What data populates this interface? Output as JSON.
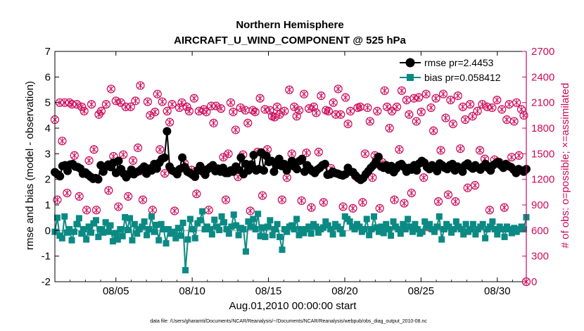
{
  "chart_data": {
    "type": "line",
    "title": "Northern Hemisphere",
    "subtitle": "AIRCRAFT_U_WIND_COMPONENT @ 525 hPa",
    "xlabel": "Aug.01,2010 00:00:00 start",
    "ylabel": "rmse and bias (model - observation)",
    "ylabel_right": "# of obs: o=possible; ×=assimilated",
    "footer": "data file: /Users/gharamti/Documents/NCAR/Reanalysis/~/Documents/NCAR/Reanalysis/webpub/obs_diag_output_2010-08.nc",
    "xlim": [
      1.0,
      31.9
    ],
    "ylim": [
      -2,
      7
    ],
    "ylim_right": [
      0,
      2700
    ],
    "x_ticks": [
      5,
      10,
      15,
      20,
      25,
      30
    ],
    "x_tick_labels": [
      "08/05",
      "08/10",
      "08/15",
      "08/20",
      "08/25",
      "08/30"
    ],
    "y_ticks": [
      "-2",
      "-1",
      "0",
      "1",
      "2",
      "3",
      "4",
      "5",
      "6",
      "7"
    ],
    "y_ticks_right": [
      "0",
      "300",
      "600",
      "900",
      "1200",
      "1500",
      "1800",
      "2100",
      "2400",
      "2700"
    ],
    "colors": {
      "rmse": "#000000",
      "bias": "#0b8a84",
      "obs": "#cc0a5a",
      "zero_line": "#bdbdbd"
    },
    "series": [
      {
        "name": "rmse",
        "legend": "rmse pr=2.4453",
        "marker": "circle",
        "values": [
          2.28,
          2.2,
          2.12,
          2.52,
          2.55,
          2.33,
          2.58,
          2.6,
          2.5,
          2.48,
          2.42,
          2.22,
          2.27,
          2.18,
          2.1,
          2.02,
          2.05,
          2.0,
          2.55,
          2.3,
          2.5,
          2.58,
          2.48,
          2.65,
          2.25,
          2.72,
          2.4,
          2.22,
          2.08,
          2.2,
          2.38,
          2.2,
          2.28,
          2.32,
          2.4,
          2.5,
          2.22,
          2.42,
          2.35,
          2.6,
          2.42,
          2.65,
          2.8,
          2.85,
          3.88,
          2.5,
          2.35,
          2.3,
          2.2,
          2.4,
          2.85,
          2.48,
          2.3,
          2.25,
          2.18,
          2.1,
          2.35,
          2.52,
          2.3,
          2.18,
          2.4,
          2.48,
          2.55,
          2.32,
          2.42,
          2.3,
          2.45,
          2.25,
          2.25,
          2.35,
          2.3,
          2.5,
          2.38,
          2.85,
          2.2,
          2.6,
          2.35,
          2.58,
          2.95,
          2.35,
          2.4,
          3.05,
          2.35,
          2.92,
          2.68,
          2.72,
          2.3,
          2.55,
          2.8,
          2.52,
          2.6,
          2.35,
          2.52,
          2.72,
          2.5,
          2.4,
          2.72,
          2.8,
          2.3,
          2.55,
          2.42,
          2.32,
          2.25,
          2.38,
          2.45,
          2.55,
          2.6,
          2.18,
          2.2,
          2.3,
          2.25,
          2.22,
          2.18,
          2.15,
          2.2,
          2.45,
          2.3,
          2.28,
          2.15,
          2.05,
          1.98,
          2.05,
          2.2,
          2.32,
          2.45,
          2.55,
          2.7,
          2.88,
          2.5,
          2.45,
          2.55,
          2.38,
          2.52,
          2.28,
          2.42,
          2.55,
          2.6,
          2.48,
          2.3,
          2.45,
          2.38,
          2.55,
          2.35,
          2.62,
          2.72,
          2.65,
          2.48,
          2.4,
          2.55,
          2.48,
          2.32,
          2.62,
          2.55,
          2.45,
          2.4,
          2.55,
          2.6,
          2.35,
          2.5,
          2.45,
          2.3,
          2.55,
          2.62,
          2.5,
          2.42,
          2.55,
          2.45,
          2.38,
          2.5,
          2.6,
          2.45,
          2.35,
          2.55,
          2.62,
          2.68,
          2.55,
          2.45,
          2.6,
          2.52,
          2.48,
          2.38,
          2.25,
          2.4,
          2.35,
          2.3,
          2.4
        ]
      },
      {
        "name": "bias",
        "legend": "bias pr=0.058412",
        "marker": "square",
        "values": [
          -0.05,
          0.5,
          -0.2,
          -0.3,
          0.55,
          -0.08,
          0.05,
          -0.38,
          -0.05,
          0.25,
          0.48,
          -0.12,
          0.05,
          -0.35,
          0.15,
          -0.08,
          0.28,
          0.4,
          -0.25,
          0.05,
          -0.08,
          0.32,
          -0.05,
          0.2,
          -0.42,
          -0.1,
          -0.35,
          0.05,
          -0.22,
          0.52,
          0.02,
          0.48,
          -0.38,
          0.25,
          -0.12,
          0.05,
          0.15,
          0.35,
          -0.18,
          0.05,
          0.55,
          -0.05,
          0.22,
          -0.38,
          0.25,
          0.05,
          -0.5,
          0.05,
          -0.12,
          -0.05,
          -0.3,
          0.1,
          -0.2,
          0.3,
          -1.55,
          -0.35,
          0.45,
          0.05,
          -0.3,
          0.28,
          0.4,
          0.75,
          0.05,
          0.15,
          0.05,
          -0.15,
          0.42,
          0.15,
          0.02,
          0.55,
          0.32,
          0.05,
          -0.12,
          0.15,
          0.62,
          0.2,
          -0.18,
          0.1,
          0.05,
          -0.82,
          0.35,
          0.15,
          0.45,
          0.05,
          0.65,
          -0.22,
          0.12,
          -0.25,
          0.15,
          0.4,
          -0.18,
          0.05,
          0.25,
          -0.25,
          -0.75,
          0.05,
          -0.05,
          0.15,
          0.2,
          0.05,
          0.45,
          -0.18,
          0.05,
          -0.1,
          0.05,
          0.15,
          -0.12,
          0.25,
          0.15,
          -0.08,
          0.05,
          0.12,
          0.35,
          0.2,
          0.05,
          -0.15,
          0.25,
          0.15,
          0.05,
          -0.12,
          0.55,
          0.45,
          0.35,
          0.15,
          0.05,
          0.25,
          0.15,
          -0.05,
          0.05,
          0.45,
          -0.18,
          0.05,
          0.55,
          0.12,
          -0.05,
          0.15,
          -0.1,
          0.25,
          0.05,
          -0.2,
          0.35,
          0.15,
          0.05,
          -0.12,
          0.25,
          0.05,
          0.45,
          0.15,
          -0.05,
          0.25,
          0.05,
          -0.12,
          -0.05,
          0.35,
          0.15,
          0.25,
          0.05,
          -0.05,
          0.15,
          0.55,
          -0.35,
          0.05,
          0.25,
          0.15,
          -0.08,
          0.05,
          0.35,
          0.15,
          0.05,
          -0.15,
          0.25,
          -0.05,
          0.05,
          0.25,
          -0.15,
          0.05,
          0.15,
          0.25,
          -0.3,
          0.05,
          0.15,
          0.35,
          0.05,
          -0.15,
          0.15,
          0.05,
          -0.25,
          0.15,
          0.05,
          -0.1,
          0.1,
          -0.05,
          0.05,
          0.15,
          0.05,
          0.52
        ]
      },
      {
        "name": "possible obs",
        "marker": "circle-open",
        "axis": "right",
        "values": [
          1900,
          960,
          2100,
          1650,
          2100,
          1040,
          2100,
          2080,
          1480,
          2080,
          1000,
          2050,
          2000,
          840,
          1420,
          2080,
          1550,
          840,
          1960,
          2000,
          1320,
          2080,
          1070,
          2260,
          1470,
          2120,
          880,
          2100,
          1490,
          2050,
          1000,
          2050,
          1420,
          2120,
          1570,
          2300,
          960,
          1280,
          2110,
          1950,
          840,
          1990,
          2200,
          1550,
          2110,
          1270,
          2000,
          1870,
          2080,
          830,
          1290,
          2040,
          2100,
          1390,
          2050,
          2000,
          1310,
          2150,
          1030,
          2000,
          1330,
          2020,
          1990,
          840,
          2060,
          1860,
          2060,
          1320,
          2030,
          1460,
          960,
          1500,
          2100,
          1990,
          1780,
          1230,
          2040,
          1490,
          2010,
          1860,
          830,
          2010,
          1990,
          1520,
          2150,
          1010,
          2020,
          1550,
          2010,
          1940,
          1930,
          2050,
          1960,
          960,
          2000,
          1220,
          2250,
          1500,
          2050,
          1940,
          2010,
          950,
          2200,
          1510,
          2030,
          870,
          2050,
          1980,
          1520,
          2180,
          930,
          2010,
          2000,
          1330,
          2100,
          1960,
          2260,
          1960,
          880,
          2160,
          1850,
          2000,
          860,
          1240,
          2040,
          2050,
          930,
          1500,
          2040,
          1880,
          1220,
          1480,
          2000,
          860,
          1400,
          2240,
          2050,
          1800,
          2000,
          960,
          2050,
          1550,
          2240,
          920,
          2130,
          1960,
          1040,
          2150,
          1880,
          2160,
          1990,
          1220,
          2200,
          640,
          2040,
          1770,
          2150,
          940,
          1540,
          2200,
          1920,
          1020,
          2130,
          1850,
          940,
          2180,
          1560,
          2050,
          1900,
          1100,
          2080,
          1940,
          1130,
          2000,
          1540,
          2080,
          1440,
          2050,
          840,
          2040,
          1430,
          2130,
          1400,
          2020,
          870,
          1900,
          2080,
          1460,
          1880,
          2100,
          1480,
          2020,
          1950,
          0
        ]
      },
      {
        "name": "assimilated obs",
        "marker": "x",
        "axis": "right",
        "values": [
          1900,
          960,
          2100,
          1650,
          2100,
          1040,
          2100,
          2080,
          1480,
          2080,
          1000,
          2050,
          2000,
          840,
          1420,
          2080,
          1550,
          840,
          1960,
          2000,
          1320,
          2080,
          1070,
          2260,
          1470,
          2120,
          880,
          2100,
          1490,
          2050,
          1000,
          2050,
          1420,
          2120,
          1570,
          2300,
          960,
          1280,
          2110,
          1950,
          840,
          1990,
          2200,
          1550,
          2110,
          1270,
          2000,
          1870,
          2080,
          830,
          1290,
          2040,
          2100,
          1390,
          2050,
          2000,
          1310,
          2150,
          1030,
          2000,
          1330,
          2020,
          1990,
          840,
          2060,
          1860,
          2060,
          1320,
          2030,
          1460,
          960,
          1500,
          2100,
          1990,
          1780,
          1230,
          2040,
          1490,
          2010,
          1860,
          830,
          2010,
          1990,
          1520,
          2150,
          1010,
          2020,
          1550,
          2010,
          1940,
          1930,
          2050,
          1960,
          960,
          2000,
          1220,
          2250,
          1500,
          2050,
          1940,
          2010,
          950,
          2200,
          1510,
          2030,
          870,
          2050,
          1980,
          1520,
          2180,
          930,
          2010,
          2000,
          1330,
          2100,
          1960,
          2260,
          1960,
          880,
          2160,
          1850,
          2000,
          860,
          1240,
          2040,
          2050,
          930,
          1500,
          2040,
          1880,
          1220,
          1480,
          2000,
          860,
          1400,
          2240,
          2050,
          1800,
          2000,
          960,
          2050,
          1550,
          2240,
          920,
          2130,
          1960,
          1040,
          2150,
          1880,
          2160,
          1990,
          1220,
          2200,
          640,
          2040,
          1770,
          2150,
          940,
          1540,
          2200,
          1920,
          1020,
          2130,
          1850,
          940,
          2180,
          1560,
          2050,
          1900,
          1100,
          2080,
          1940,
          1130,
          2000,
          1540,
          2080,
          1440,
          2050,
          840,
          2040,
          1430,
          2130,
          1400,
          2020,
          870,
          1900,
          2080,
          1460,
          1880,
          2100,
          1480,
          2020,
          1950,
          0
        ]
      }
    ]
  }
}
